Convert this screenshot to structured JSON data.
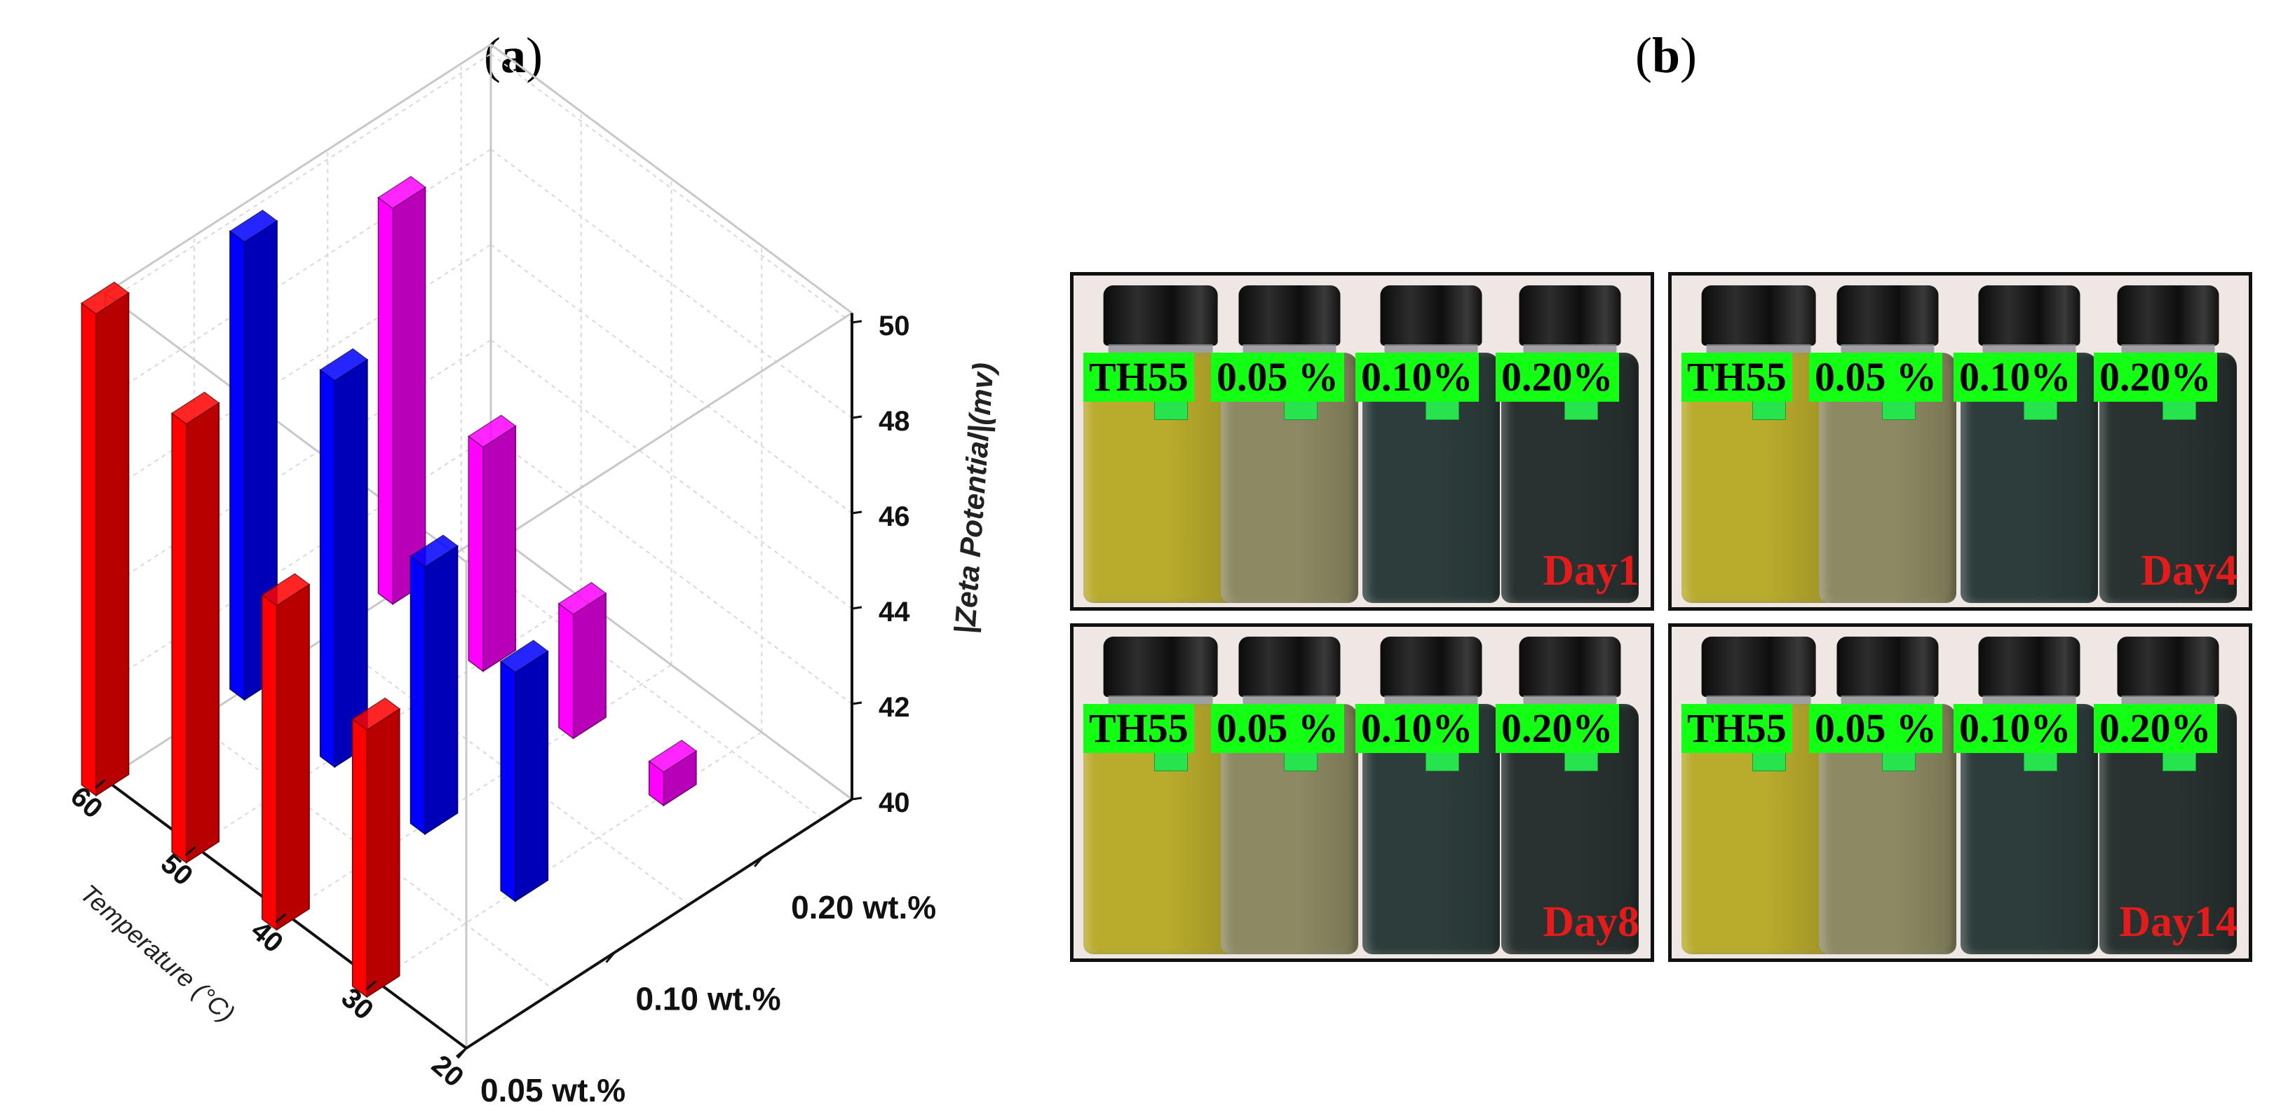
{
  "panels": {
    "a_label": "a",
    "b_label": "b"
  },
  "chart_data": {
    "type": "bar3d",
    "zlabel": "|Zeta Potential|(mv)",
    "ylabel": "Temperature (°C)",
    "zlim": [
      40,
      50
    ],
    "z_ticks": [
      "40",
      "42",
      "44",
      "46",
      "48",
      "50"
    ],
    "temperature_ticks": [
      "20",
      "30",
      "40",
      "50",
      "60"
    ],
    "concentration_ticks": [
      "0.05 wt.%",
      "0.10 wt.%",
      "0.20 wt.%"
    ],
    "series": [
      {
        "name": "0.05 wt.%",
        "color": "#ff0000",
        "temperatures": [
          60,
          50,
          40,
          30
        ],
        "values": [
          50.1,
          49.2,
          46.8,
          45.6
        ]
      },
      {
        "name": "0.10 wt.%",
        "color": "#0000ff",
        "temperatures": [
          60,
          50,
          40,
          30
        ],
        "values": [
          49.6,
          48.1,
          45.6,
          44.8
        ]
      },
      {
        "name": "0.20 wt.%",
        "color": "#ff00ff",
        "temperatures": [
          60,
          50,
          40,
          30
        ],
        "values": [
          48.3,
          44.7,
          42.6,
          40.7
        ]
      }
    ]
  },
  "photos": {
    "tiles": [
      {
        "labels": [
          "TH55",
          "0.05 %",
          "0.10%",
          "0.20%"
        ],
        "day": "Day1"
      },
      {
        "labels": [
          "TH55",
          "0.05 %",
          "0.10%",
          "0.20%"
        ],
        "day": "Day4"
      },
      {
        "labels": [
          "TH55",
          "0.05 %",
          "0.10%",
          "0.20%"
        ],
        "day": "Day8"
      },
      {
        "labels": [
          "TH55",
          "0.05 %",
          "0.10%",
          "0.20%"
        ],
        "day": "Day14"
      }
    ],
    "jar_colors": [
      "#b9ab2c",
      "#8d8a63",
      "#2d3d3b",
      "#283230"
    ]
  }
}
